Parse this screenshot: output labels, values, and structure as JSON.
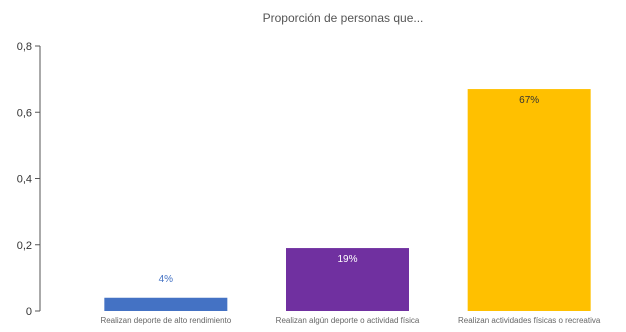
{
  "chart_data": {
    "type": "bar",
    "title": "Proporción de personas que...",
    "xlabel": "",
    "ylabel": "",
    "categories": [
      "Realizan deporte de alto rendimiento",
      "Realizan algún deporte o actividad física",
      "Realizan actividades físicas o recreativa"
    ],
    "values": [
      0.04,
      0.19,
      0.67
    ],
    "data_labels": [
      "4%",
      "19%",
      "67%"
    ],
    "bar_colors": [
      "#4472C4",
      "#7030A0",
      "#FFC000"
    ],
    "data_label_colors": [
      "#4472C4",
      "#ffffff",
      "#333333"
    ],
    "ylim": [
      0,
      0.8
    ],
    "y_ticks": [
      0,
      0.2,
      0.4,
      0.6,
      0.8
    ],
    "y_tick_labels": [
      "0",
      "0,2",
      "0,4",
      "0,6",
      "0,8"
    ],
    "grid": false,
    "legend": "none"
  }
}
